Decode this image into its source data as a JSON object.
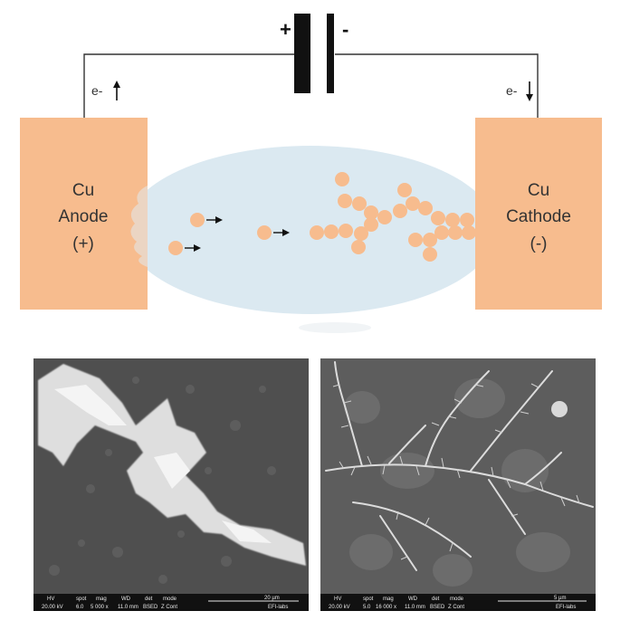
{
  "battery": {
    "positive_symbol": "+",
    "negative_symbol": "-"
  },
  "electron_labels": {
    "left": "e-",
    "right": "e-"
  },
  "anode": {
    "line1": "Cu",
    "line2": "Anode",
    "line3": "(+)"
  },
  "cathode": {
    "line1": "Cu",
    "line2": "Cathode",
    "line3": "(-)"
  },
  "colors": {
    "electrode": "#f7bc8e",
    "electrolyte": "#dbe9f1",
    "ion": "#f7bc8e",
    "wire": "#333333",
    "sem_dark": "#5a5a5a",
    "sem_crystal": "#e6e6e6"
  },
  "micrographs": [
    {
      "name": "left",
      "databar": {
        "headers": [
          "HV",
          "spot",
          "mag",
          "WD",
          "det",
          "mode"
        ],
        "values": [
          "20.00 kV",
          "6.0",
          "5 000 x",
          "11.0 mm",
          "BSED",
          "Z Cont"
        ],
        "scale": "20 µm",
        "lab": "EFI-labs"
      }
    },
    {
      "name": "right",
      "databar": {
        "headers": [
          "HV",
          "spot",
          "mag",
          "WD",
          "det",
          "mode"
        ],
        "values": [
          "20.00 kV",
          "5.0",
          "16 000 x",
          "11.0 mm",
          "BSED",
          "Z Cont"
        ],
        "scale": "5 µm",
        "lab": "EFI-labs"
      }
    }
  ]
}
